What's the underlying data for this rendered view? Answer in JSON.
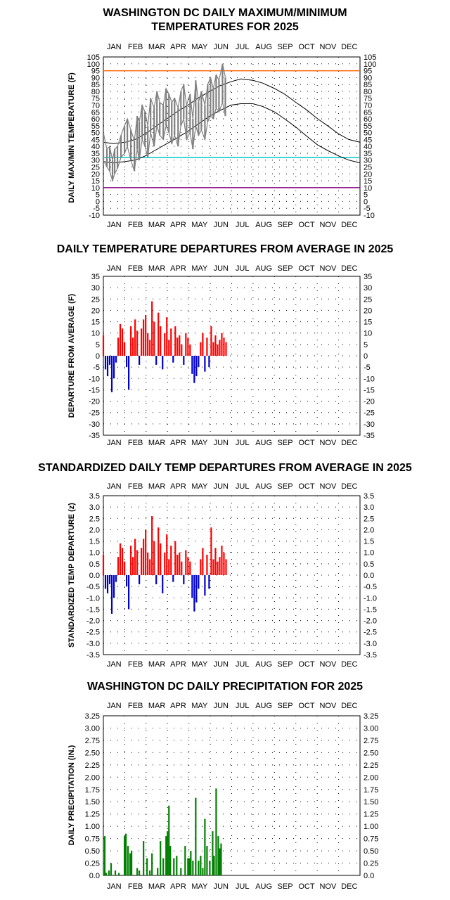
{
  "months": [
    "JAN",
    "FEB",
    "MAR",
    "APR",
    "MAY",
    "JUN",
    "JUL",
    "AUG",
    "SEP",
    "OCT",
    "NOV",
    "DEC"
  ],
  "chart_data": [
    {
      "type": "line",
      "title": [
        "WASHINGTON DC DAILY MAXIMUM/MINIMUM",
        "TEMPERATURES FOR 2025"
      ],
      "ylabel": "DAILY MAX/MIN TEMPERATURE (F)",
      "ylim": [
        -10,
        105
      ],
      "yticks": [
        "105",
        "100",
        "95",
        "90",
        "85",
        "80",
        "75",
        "70",
        "65",
        "60",
        "55",
        "50",
        "45",
        "40",
        "35",
        "30",
        "25",
        "20",
        "15",
        "10",
        "5",
        "0",
        "-5",
        "-10"
      ],
      "grid": "dotted",
      "reference_lines": [
        {
          "y": 95,
          "color": "#ff6600"
        },
        {
          "y": 32,
          "color": "#00c8c8"
        },
        {
          "y": 10,
          "color": "#800080"
        }
      ],
      "normal_max": {
        "days": [
          1,
          15,
          32,
          46,
          60,
          74,
          91,
          105,
          121,
          135,
          152,
          166,
          182,
          196,
          213,
          227,
          244,
          258,
          274,
          288,
          305,
          319,
          335,
          349,
          365
        ],
        "values": [
          43,
          42,
          43,
          45,
          49,
          54,
          60,
          65,
          70,
          75,
          80,
          84,
          87,
          89,
          88,
          86,
          82,
          78,
          72,
          67,
          60,
          55,
          49,
          45,
          43
        ]
      },
      "normal_min": {
        "days": [
          1,
          15,
          32,
          46,
          60,
          74,
          91,
          105,
          121,
          135,
          152,
          166,
          182,
          196,
          213,
          227,
          244,
          258,
          274,
          288,
          305,
          319,
          335,
          349,
          365
        ],
        "values": [
          29,
          28,
          29,
          30,
          33,
          37,
          42,
          46,
          51,
          56,
          62,
          66,
          70,
          71,
          71,
          69,
          65,
          60,
          54,
          48,
          41,
          37,
          33,
          30,
          28
        ]
      },
      "observed_color": "#808080",
      "observed": {
        "max_days": [
          1,
          6,
          10,
          14,
          17,
          21,
          26,
          31,
          35,
          40,
          45,
          49,
          52,
          56,
          60,
          64,
          68,
          73,
          77,
          81,
          86,
          90,
          94,
          98,
          102,
          107,
          111,
          115,
          119,
          124,
          128,
          132,
          136,
          140,
          145,
          149,
          153,
          157,
          161,
          165,
          170,
          174
        ],
        "max_values": [
          50,
          38,
          40,
          30,
          38,
          40,
          48,
          55,
          60,
          52,
          44,
          62,
          58,
          70,
          65,
          55,
          75,
          68,
          80,
          72,
          70,
          82,
          78,
          72,
          75,
          68,
          80,
          85,
          70,
          78,
          60,
          88,
          72,
          80,
          70,
          85,
          90,
          82,
          92,
          88,
          100,
          90
        ],
        "min_days": [
          1,
          6,
          10,
          14,
          17,
          21,
          26,
          31,
          35,
          40,
          45,
          49,
          52,
          56,
          60,
          64,
          68,
          73,
          77,
          81,
          86,
          90,
          94,
          98,
          102,
          107,
          111,
          115,
          119,
          124,
          128,
          132,
          136,
          140,
          145,
          149,
          153,
          157,
          161,
          165,
          170,
          174
        ],
        "min_values": [
          30,
          25,
          22,
          15,
          20,
          24,
          32,
          35,
          40,
          30,
          22,
          38,
          30,
          45,
          40,
          32,
          50,
          40,
          55,
          48,
          45,
          55,
          50,
          42,
          48,
          40,
          55,
          60,
          45,
          50,
          38,
          55,
          48,
          52,
          45,
          58,
          62,
          60,
          68,
          65,
          72,
          62
        ]
      }
    },
    {
      "type": "bar",
      "title": "DAILY TEMPERATURE DEPARTURES FROM AVERAGE IN 2025",
      "ylabel": "DEPARTURE FROM AVERAGE (F)",
      "ylim": [
        -35,
        35
      ],
      "yticks": [
        "35",
        "30",
        "25",
        "20",
        "15",
        "10",
        "5",
        "0",
        "-5",
        "-10",
        "-15",
        "-20",
        "-25",
        "-30",
        "-35"
      ],
      "grid": "dotted",
      "positive_color": "#ff0000",
      "negative_color": "#0000cc",
      "days": [
        1,
        4,
        7,
        10,
        13,
        16,
        19,
        22,
        25,
        28,
        31,
        34,
        37,
        40,
        43,
        46,
        49,
        52,
        55,
        58,
        61,
        64,
        67,
        70,
        73,
        76,
        79,
        82,
        85,
        88,
        91,
        94,
        97,
        100,
        103,
        106,
        109,
        112,
        115,
        118,
        121,
        124,
        127,
        130,
        133,
        136,
        139,
        142,
        145,
        148,
        151,
        154,
        157,
        160,
        163,
        166,
        169,
        172,
        175
      ],
      "values": [
        9,
        -6,
        -9,
        -4,
        -16,
        -10,
        -3,
        8,
        14,
        12,
        6,
        -5,
        -15,
        13,
        8,
        16,
        11,
        -4,
        12,
        16,
        18,
        10,
        7,
        24,
        15,
        -4,
        19,
        13,
        -6,
        10,
        17,
        7,
        12,
        -3,
        13,
        8,
        9,
        5,
        -4,
        10,
        8,
        5,
        -8,
        -12,
        -9,
        -5,
        6,
        10,
        -7,
        8,
        -5,
        13,
        6,
        9,
        5,
        7,
        10,
        8,
        6
      ]
    },
    {
      "type": "bar",
      "title": "STANDARDIZED DAILY TEMP DEPARTURES FROM AVERAGE IN 2025",
      "ylabel": "STANDARDIZED TEMP DEPARTURE (z)",
      "ylim": [
        -3.5,
        3.5
      ],
      "yticks": [
        "3.5",
        "3.0",
        "2.5",
        "2.0",
        "1.5",
        "1.0",
        "0.5",
        "0.0",
        "-0.5",
        "-1.0",
        "-1.5",
        "-2.0",
        "-2.5",
        "-3.0",
        "-3.5"
      ],
      "grid": "dotted",
      "positive_color": "#ff0000",
      "negative_color": "#0000cc",
      "days": [
        1,
        4,
        7,
        10,
        13,
        16,
        19,
        22,
        25,
        28,
        31,
        34,
        37,
        40,
        43,
        46,
        49,
        52,
        55,
        58,
        61,
        64,
        67,
        70,
        73,
        76,
        79,
        82,
        85,
        88,
        91,
        94,
        97,
        100,
        103,
        106,
        109,
        112,
        115,
        118,
        121,
        124,
        127,
        130,
        133,
        136,
        139,
        142,
        145,
        148,
        151,
        154,
        157,
        160,
        163,
        166,
        169,
        172,
        175
      ],
      "values": [
        0.9,
        -0.6,
        -0.8,
        -0.4,
        -1.7,
        -1.0,
        -0.3,
        0.8,
        1.4,
        1.2,
        0.6,
        -0.5,
        -1.5,
        1.3,
        0.8,
        1.6,
        1.1,
        -0.4,
        1.2,
        1.6,
        2.0,
        1.0,
        0.7,
        2.6,
        1.5,
        -0.4,
        2.1,
        1.4,
        -0.8,
        1.0,
        1.8,
        0.7,
        1.3,
        -0.3,
        1.5,
        0.9,
        1.0,
        0.6,
        -0.4,
        1.1,
        0.8,
        0.6,
        -1.0,
        -1.6,
        -1.2,
        -0.6,
        0.7,
        1.2,
        -0.9,
        0.9,
        -0.6,
        2.1,
        0.7,
        1.2,
        0.6,
        0.8,
        1.3,
        1.0,
        0.7
      ]
    },
    {
      "type": "bar",
      "title": "WASHINGTON DC DAILY PRECIPITATION FOR 2025",
      "ylabel": "DAILY PRECIPITATION (IN.)",
      "ylim": [
        0,
        3.25
      ],
      "yticks": [
        "3.25",
        "3.00",
        "2.75",
        "2.50",
        "2.25",
        "2.00",
        "1.75",
        "1.50",
        "1.25",
        "1.00",
        "0.75",
        "0.50",
        "0.25",
        "0.0"
      ],
      "grid": "dotted",
      "bar_color": "#008000",
      "days": [
        3,
        5,
        9,
        12,
        18,
        23,
        31,
        33,
        36,
        39,
        41,
        49,
        52,
        58,
        63,
        67,
        70,
        78,
        82,
        86,
        90,
        92,
        94,
        96,
        101,
        105,
        111,
        117,
        121,
        123,
        125,
        128,
        132,
        136,
        139,
        142,
        145,
        148,
        152,
        156,
        158,
        161,
        164,
        166,
        168
      ],
      "values": [
        0.8,
        0.05,
        0.1,
        0.25,
        0.1,
        0.05,
        0.8,
        0.85,
        0.6,
        0.45,
        0.5,
        0.15,
        0.1,
        0.7,
        0.35,
        0.1,
        0.45,
        0.15,
        0.7,
        0.35,
        0.8,
        0.9,
        1.42,
        0.6,
        0.35,
        0.4,
        0.15,
        0.6,
        0.35,
        0.35,
        0.5,
        0.3,
        1.58,
        0.3,
        0.4,
        0.15,
        1.15,
        0.6,
        0.3,
        0.9,
        0.4,
        1.77,
        0.8,
        0.55,
        0.65
      ]
    }
  ]
}
